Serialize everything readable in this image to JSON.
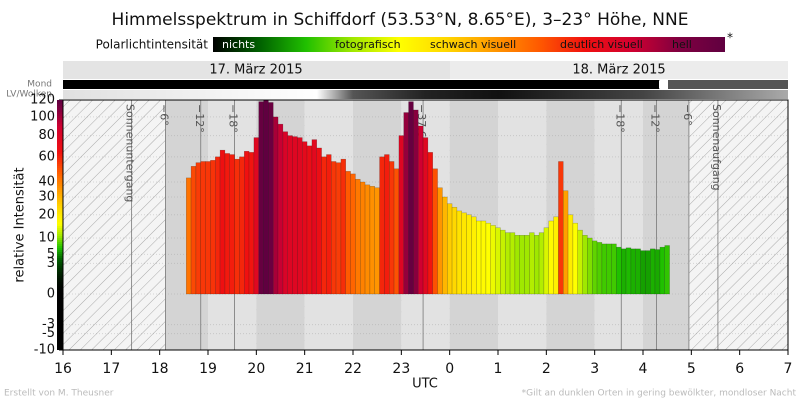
{
  "chart_data": {
    "type": "bar",
    "title": "Himmelsspektrum in Schiffdorf (53.53°N, 8.65°E), 3–23° Höhe, NNE",
    "colorbar_title": "Polarlichtintensität",
    "colorbar_labels": [
      "nichts",
      "fotografisch",
      "schwach visuell",
      "deutlich visuell",
      "hell"
    ],
    "colorbar_note": "*",
    "dates": [
      "17. März 2015",
      "18. März 2015"
    ],
    "row_labels": [
      "Mond",
      "LV/Wolken"
    ],
    "xlabel": "UTC",
    "ylabel": "relative Intensität",
    "credit": "Erstellt von M. Theusner",
    "footnote": "*Gilt an dunklen Orten in gering bewölkter, mondloser Nacht",
    "yscale": "sqrt",
    "grid": true,
    "xlim": [
      16,
      31
    ],
    "xticks": [
      16,
      17,
      18,
      19,
      20,
      21,
      22,
      23,
      {
        "value": 24,
        "label": "0"
      },
      {
        "value": 25,
        "label": "1"
      },
      {
        "value": 26,
        "label": "2"
      },
      {
        "value": 27,
        "label": "3"
      },
      {
        "value": 28,
        "label": "4"
      },
      {
        "value": 29,
        "label": "5"
      },
      {
        "value": 30,
        "label": "6"
      },
      {
        "value": 31,
        "label": "7"
      }
    ],
    "ylim": [
      -10,
      120
    ],
    "yticks": [
      -10,
      -5,
      -3,
      0,
      3,
      5,
      10,
      20,
      30,
      40,
      60,
      80,
      100,
      120
    ],
    "colorscale": [
      [
        0,
        "#000000"
      ],
      [
        4,
        "#006000"
      ],
      [
        7,
        "#20c000"
      ],
      [
        11,
        "#a0e800"
      ],
      [
        16,
        "#ffff00"
      ],
      [
        24,
        "#ffd800"
      ],
      [
        35,
        "#ff9a00"
      ],
      [
        48,
        "#ff5a00"
      ],
      [
        65,
        "#f01010"
      ],
      [
        90,
        "#d00030"
      ],
      [
        110,
        "#800040"
      ],
      [
        120,
        "#600040"
      ]
    ],
    "annotations": [
      {
        "x": 17.42,
        "label": "Sonnenuntergang"
      },
      {
        "x": 18.12,
        "label": "−6°"
      },
      {
        "x": 18.85,
        "label": "−12°"
      },
      {
        "x": 19.55,
        "label": "−18°"
      },
      {
        "x": 23.45,
        "label": "−37.6°"
      },
      {
        "x": 27.55,
        "label": "−18°"
      },
      {
        "x": 28.28,
        "label": "−12°"
      },
      {
        "x": 28.95,
        "label": "−6°"
      },
      {
        "x": 29.55,
        "label": "Sonnenaufgang"
      }
    ],
    "x": [
      18.6,
      18.7,
      18.8,
      18.9,
      19.0,
      19.1,
      19.2,
      19.3,
      19.4,
      19.5,
      19.6,
      19.7,
      19.8,
      19.9,
      20.0,
      20.1,
      20.2,
      20.3,
      20.4,
      20.5,
      20.6,
      20.7,
      20.8,
      20.9,
      21.0,
      21.1,
      21.2,
      21.3,
      21.4,
      21.5,
      21.6,
      21.7,
      21.8,
      21.9,
      22.0,
      22.1,
      22.2,
      22.3,
      22.4,
      22.5,
      22.6,
      22.7,
      22.8,
      22.9,
      23.0,
      23.1,
      23.2,
      23.3,
      23.4,
      23.5,
      23.6,
      23.7,
      23.8,
      23.9,
      24.0,
      24.1,
      24.2,
      24.3,
      24.4,
      24.5,
      24.6,
      24.7,
      24.8,
      24.9,
      25.0,
      25.1,
      25.2,
      25.3,
      25.4,
      25.5,
      25.6,
      25.7,
      25.8,
      25.9,
      26.0,
      26.1,
      26.2,
      26.3,
      26.4,
      26.5,
      26.6,
      26.7,
      26.8,
      26.9,
      27.0,
      27.1,
      27.2,
      27.3,
      27.4,
      27.5,
      27.6,
      27.7,
      27.8,
      27.9,
      28.0,
      28.1,
      28.2,
      28.3,
      28.4,
      28.5
    ],
    "values": [
      43,
      52,
      55,
      56,
      56,
      57,
      60,
      66,
      63,
      62,
      58,
      60,
      65,
      64,
      78,
      118,
      120,
      117,
      100,
      92,
      84,
      80,
      79,
      78,
      74,
      70,
      76,
      68,
      60,
      62,
      56,
      55,
      58,
      48,
      46,
      42,
      40,
      38,
      37,
      36,
      60,
      62,
      56,
      50,
      80,
      105,
      118,
      108,
      90,
      78,
      64,
      50,
      36,
      30,
      26,
      24,
      22,
      21,
      20,
      19,
      17,
      17,
      16,
      15,
      14,
      13,
      12,
      12,
      11,
      11,
      11,
      12,
      11,
      12,
      14,
      17,
      19,
      56,
      34,
      20,
      16,
      13,
      11,
      10,
      9,
      8.5,
      8,
      8,
      8,
      7,
      6.5,
      6.8,
      6.5,
      6.5,
      6,
      6,
      6.5,
      6.3,
      7,
      7.5
    ]
  }
}
